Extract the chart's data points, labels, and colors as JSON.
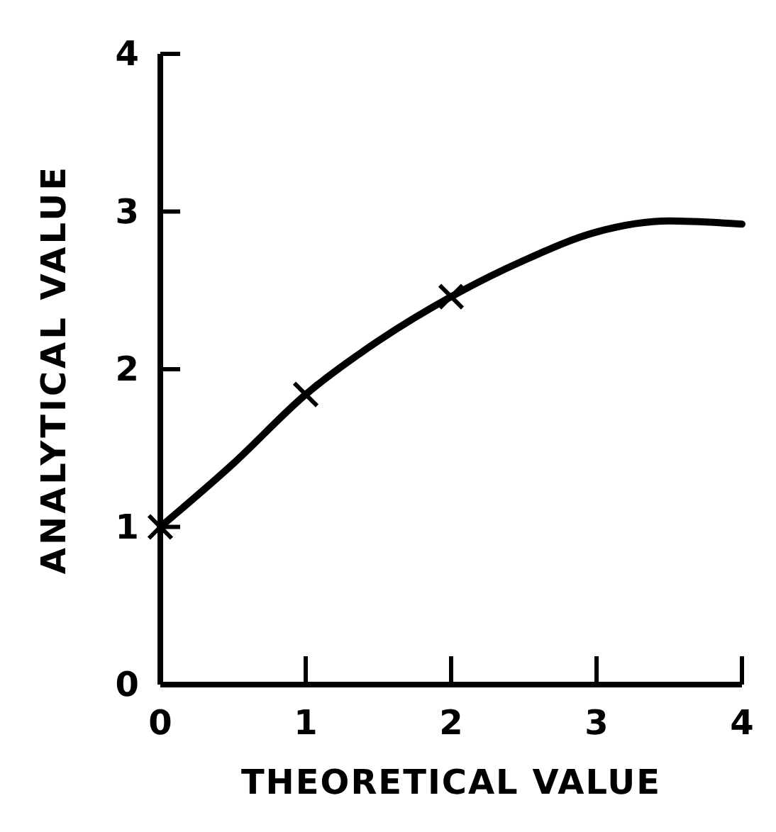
{
  "chart_data": {
    "type": "line",
    "xlabel": "THEORETICAL VALUE",
    "ylabel": "ANALYTICAL VALUE",
    "xlim": [
      0,
      4
    ],
    "ylim": [
      0,
      4
    ],
    "xticks": [
      0,
      1,
      2,
      3,
      4
    ],
    "yticks": [
      0,
      1,
      2,
      3,
      4
    ],
    "grid": false,
    "series": [
      {
        "color": "#000000",
        "marker": "none",
        "x": [
          0,
          0.5,
          1,
          1.5,
          2,
          2.5,
          3,
          3.5,
          4
        ],
        "values": [
          1,
          1.4,
          1.84,
          2.18,
          2.46,
          2.69,
          2.87,
          2.94,
          2.92
        ]
      },
      {
        "type": "scatter",
        "color": "#000000",
        "marker": "cross",
        "x": [
          0,
          1,
          2
        ],
        "values": [
          1,
          1.84,
          2.46
        ]
      }
    ]
  }
}
